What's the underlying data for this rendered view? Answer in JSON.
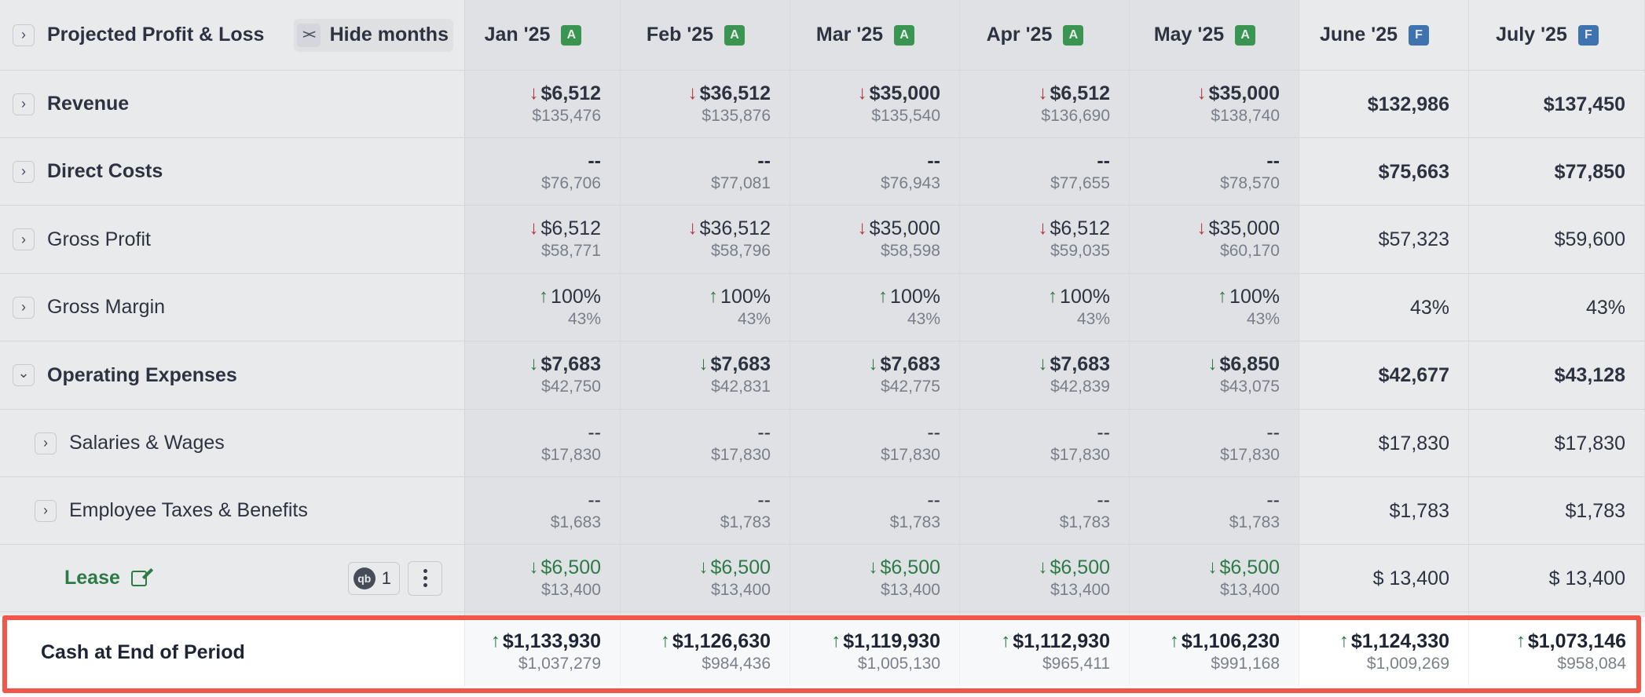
{
  "header": {
    "title": "Projected Profit & Loss",
    "hide_months_label": "Hide months",
    "hide_icon": "collapse-arrows-icon",
    "months": [
      {
        "label": "Jan '25",
        "badge": "A"
      },
      {
        "label": "Feb '25",
        "badge": "A"
      },
      {
        "label": "Mar '25",
        "badge": "A"
      },
      {
        "label": "Apr '25",
        "badge": "A"
      },
      {
        "label": "May '25",
        "badge": "A"
      },
      {
        "label": "June '25",
        "badge": "F"
      },
      {
        "label": "July '25",
        "badge": "F"
      }
    ]
  },
  "colors": {
    "actual_badge": "#2f9a4a",
    "forecast_badge": "#3572b8",
    "down_negative": "#c5222e",
    "positive": "#1f7a3c",
    "highlight": "#f0574a"
  },
  "rows": [
    {
      "label": "Revenue",
      "bold": true,
      "expander": "chevron-right-icon",
      "indent": 0,
      "cells": [
        {
          "primary": "$6,512",
          "secondary": "$135,476",
          "arrow": "down-red"
        },
        {
          "primary": "$36,512",
          "secondary": "$135,876",
          "arrow": "down-red"
        },
        {
          "primary": "$35,000",
          "secondary": "$135,540",
          "arrow": "down-red"
        },
        {
          "primary": "$6,512",
          "secondary": "$136,690",
          "arrow": "down-red"
        },
        {
          "primary": "$35,000",
          "secondary": "$138,740",
          "arrow": "down-red"
        },
        {
          "primary": "$132,986",
          "secondary": ""
        },
        {
          "primary": "$137,450",
          "secondary": ""
        }
      ]
    },
    {
      "label": "Direct Costs",
      "bold": true,
      "expander": "chevron-right-icon",
      "indent": 0,
      "cells": [
        {
          "primary": "--",
          "secondary": "$76,706"
        },
        {
          "primary": "--",
          "secondary": "$77,081"
        },
        {
          "primary": "--",
          "secondary": "$76,943"
        },
        {
          "primary": "--",
          "secondary": "$77,655"
        },
        {
          "primary": "--",
          "secondary": "$78,570"
        },
        {
          "primary": "$75,663",
          "secondary": ""
        },
        {
          "primary": "$77,850",
          "secondary": ""
        }
      ]
    },
    {
      "label": "Gross Profit",
      "bold": false,
      "expander": "chevron-right-icon",
      "indent": 0,
      "cells": [
        {
          "primary": "$6,512",
          "secondary": "$58,771",
          "arrow": "down-red"
        },
        {
          "primary": "$36,512",
          "secondary": "$58,796",
          "arrow": "down-red"
        },
        {
          "primary": "$35,000",
          "secondary": "$58,598",
          "arrow": "down-red"
        },
        {
          "primary": "$6,512",
          "secondary": "$59,035",
          "arrow": "down-red"
        },
        {
          "primary": "$35,000",
          "secondary": "$60,170",
          "arrow": "down-red"
        },
        {
          "primary": "$57,323",
          "secondary": ""
        },
        {
          "primary": "$59,600",
          "secondary": ""
        }
      ]
    },
    {
      "label": "Gross Margin",
      "bold": false,
      "expander": "chevron-right-icon",
      "indent": 0,
      "cells": [
        {
          "primary": "100%",
          "secondary": "43%",
          "arrow": "up-green"
        },
        {
          "primary": "100%",
          "secondary": "43%",
          "arrow": "up-green"
        },
        {
          "primary": "100%",
          "secondary": "43%",
          "arrow": "up-green"
        },
        {
          "primary": "100%",
          "secondary": "43%",
          "arrow": "up-green"
        },
        {
          "primary": "100%",
          "secondary": "43%",
          "arrow": "up-green"
        },
        {
          "primary": "43%",
          "secondary": ""
        },
        {
          "primary": "43%",
          "secondary": ""
        }
      ]
    },
    {
      "label": "Operating Expenses",
      "bold": true,
      "expander": "chevron-down-icon",
      "indent": 0,
      "cells": [
        {
          "primary": "$7,683",
          "secondary": "$42,750",
          "arrow": "down-green"
        },
        {
          "primary": "$7,683",
          "secondary": "$42,831",
          "arrow": "down-green"
        },
        {
          "primary": "$7,683",
          "secondary": "$42,775",
          "arrow": "down-green"
        },
        {
          "primary": "$7,683",
          "secondary": "$42,839",
          "arrow": "down-green"
        },
        {
          "primary": "$6,850",
          "secondary": "$43,075",
          "arrow": "down-green"
        },
        {
          "primary": "$42,677",
          "secondary": ""
        },
        {
          "primary": "$43,128",
          "secondary": ""
        }
      ]
    },
    {
      "label": "Salaries & Wages",
      "bold": false,
      "expander": "chevron-right-icon",
      "indent": 1,
      "cells": [
        {
          "primary": "--",
          "secondary": "$17,830"
        },
        {
          "primary": "--",
          "secondary": "$17,830"
        },
        {
          "primary": "--",
          "secondary": "$17,830"
        },
        {
          "primary": "--",
          "secondary": "$17,830"
        },
        {
          "primary": "--",
          "secondary": "$17,830"
        },
        {
          "primary": "$17,830",
          "secondary": ""
        },
        {
          "primary": "$17,830",
          "secondary": ""
        }
      ]
    },
    {
      "label": "Employee Taxes & Benefits",
      "bold": false,
      "expander": "chevron-right-icon",
      "indent": 1,
      "cells": [
        {
          "primary": "--",
          "secondary": "$1,683"
        },
        {
          "primary": "--",
          "secondary": "$1,783"
        },
        {
          "primary": "--",
          "secondary": "$1,783"
        },
        {
          "primary": "--",
          "secondary": "$1,783"
        },
        {
          "primary": "--",
          "secondary": "$1,783"
        },
        {
          "primary": "$1,783",
          "secondary": ""
        },
        {
          "primary": "$1,783",
          "secondary": ""
        }
      ]
    },
    {
      "label": "Lease",
      "type": "lease",
      "qb_count": "1",
      "cells": [
        {
          "primary": "$6,500",
          "secondary": "$13,400",
          "arrow": "down-green",
          "green": true
        },
        {
          "primary": "$6,500",
          "secondary": "$13,400",
          "arrow": "down-green",
          "green": true
        },
        {
          "primary": "$6,500",
          "secondary": "$13,400",
          "arrow": "down-green",
          "green": true
        },
        {
          "primary": "$6,500",
          "secondary": "$13,400",
          "arrow": "down-green",
          "green": true
        },
        {
          "primary": "$6,500",
          "secondary": "$13,400",
          "arrow": "down-green",
          "green": true
        },
        {
          "primary": "$ 13,400",
          "secondary": ""
        },
        {
          "primary": "$ 13,400",
          "secondary": ""
        }
      ]
    }
  ],
  "cash_row": {
    "label": "Cash at End of Period",
    "cells": [
      {
        "primary": "$1,133,930",
        "secondary": "$1,037,279",
        "arrow": "up-green"
      },
      {
        "primary": "$1,126,630",
        "secondary": "$984,436",
        "arrow": "up-green"
      },
      {
        "primary": "$1,119,930",
        "secondary": "$1,005,130",
        "arrow": "up-green"
      },
      {
        "primary": "$1,112,930",
        "secondary": "$965,411",
        "arrow": "up-green"
      },
      {
        "primary": "$1,106,230",
        "secondary": "$991,168",
        "arrow": "up-green"
      },
      {
        "primary": "$1,124,330",
        "secondary": "$1,009,269",
        "arrow": "up-green"
      },
      {
        "primary": "$1,073,146",
        "secondary": "$958,084",
        "arrow": "up-green"
      }
    ]
  }
}
